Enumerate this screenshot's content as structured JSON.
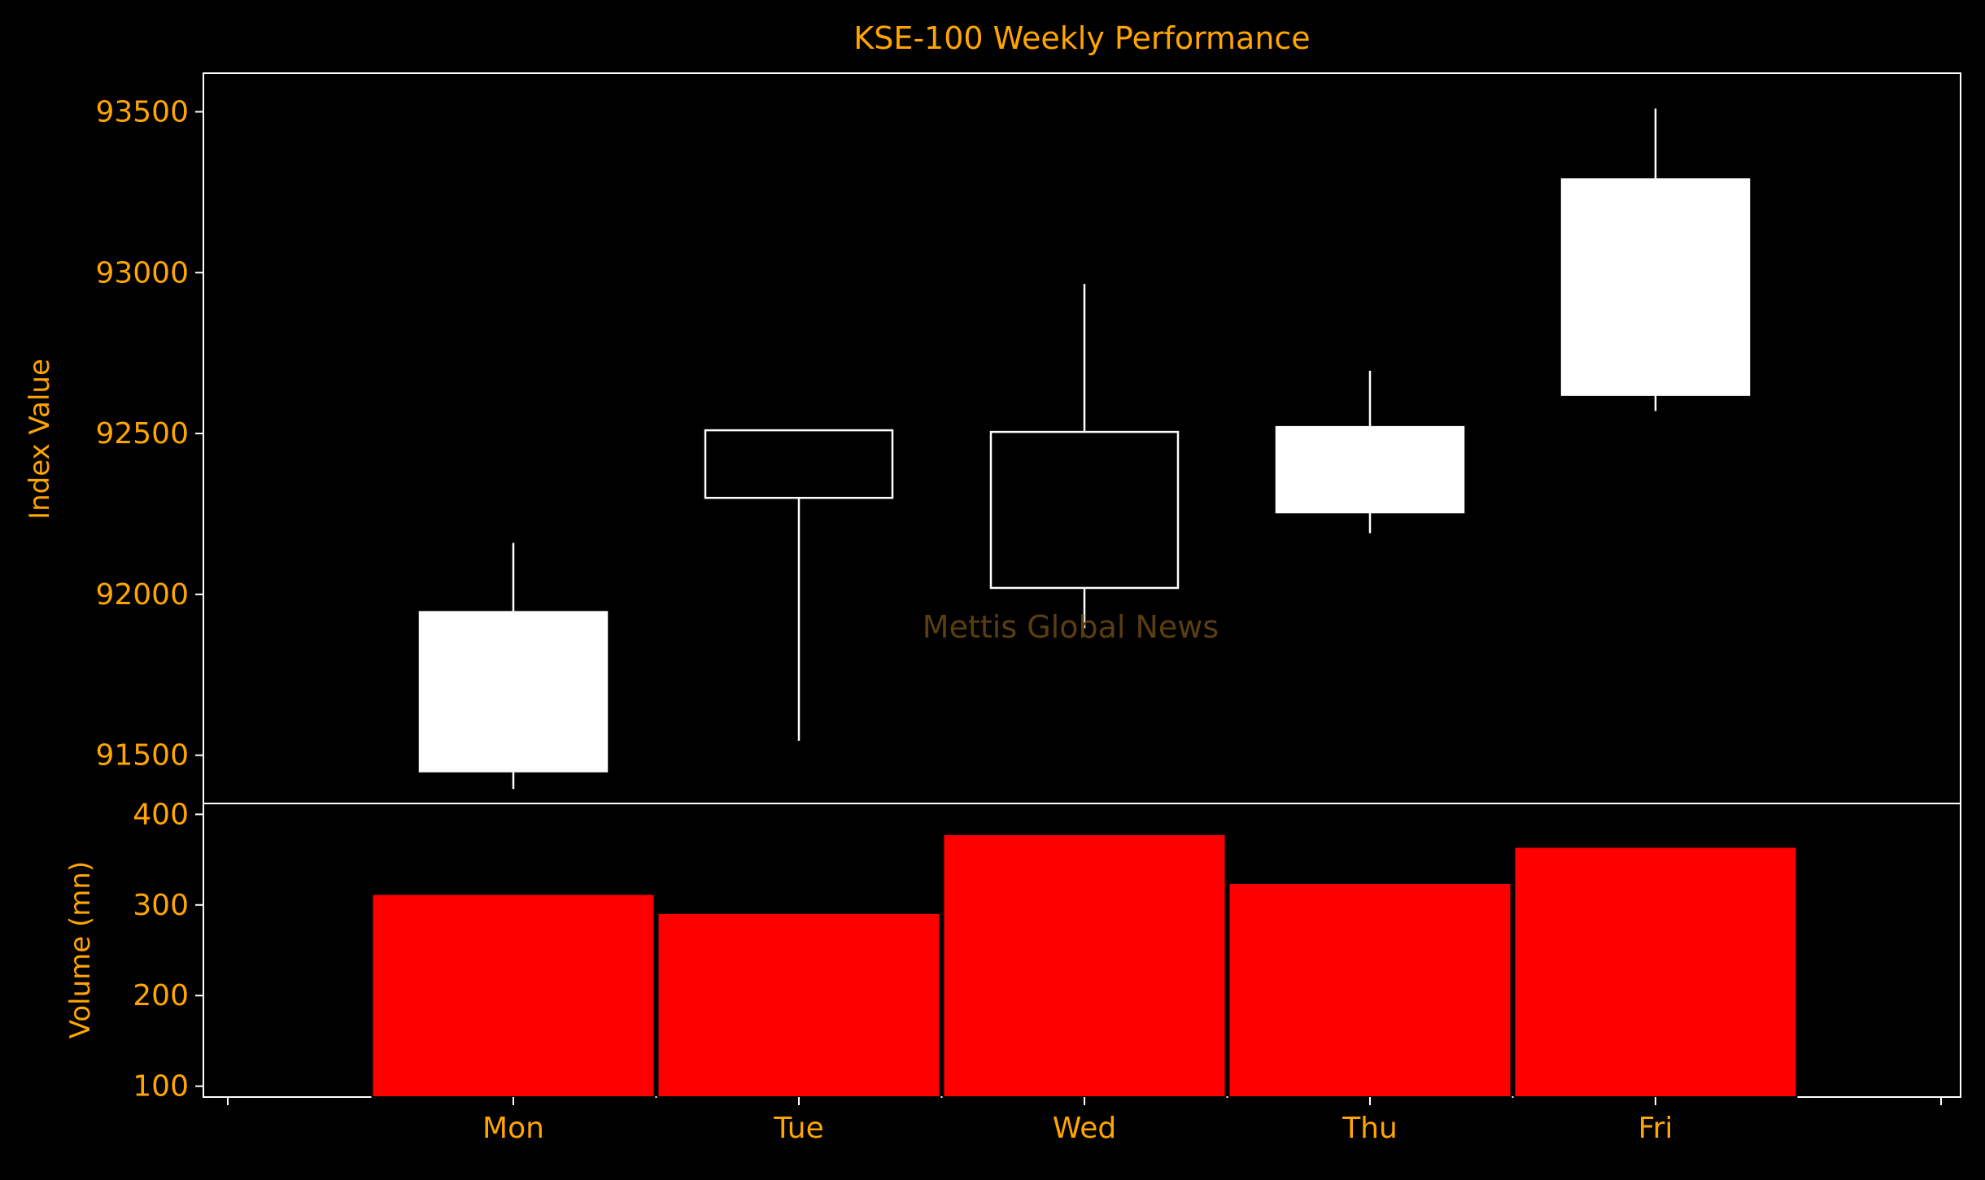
{
  "chart_data": {
    "type": "candlestick",
    "title": "KSE-100 Weekly Performance",
    "watermark": "Mettis Global News",
    "categories": [
      "Mon",
      "Tue",
      "Wed",
      "Thu",
      "Fri"
    ],
    "price": {
      "ylabel": "Index Value",
      "ylim": [
        91350,
        93620
      ],
      "yticks": [
        91500,
        92000,
        92500,
        93000,
        93500
      ],
      "ohlc": [
        {
          "day": "Mon",
          "open": 91450,
          "high": 92160,
          "low": 91395,
          "close": 91945
        },
        {
          "day": "Tue",
          "open": 92510,
          "high": 92510,
          "low": 91545,
          "close": 92300
        },
        {
          "day": "Wed",
          "open": 92505,
          "high": 92965,
          "low": 91895,
          "close": 92020
        },
        {
          "day": "Thu",
          "open": 92255,
          "high": 92695,
          "low": 92190,
          "close": 92520
        },
        {
          "day": "Fri",
          "open": 92620,
          "high": 93510,
          "low": 92570,
          "close": 93290
        }
      ]
    },
    "volume": {
      "ylabel": "Volume (mn)",
      "ylim": [
        88,
        412
      ],
      "yticks": [
        100,
        200,
        300,
        400
      ],
      "values": [
        312,
        291,
        378,
        324,
        364
      ]
    },
    "colors": {
      "background": "#000000",
      "text": "#FFA500",
      "axes": "#FFFFFF",
      "bullish": "#FFFFFF",
      "bearish": "#000000",
      "volume_bar": "#FF0000",
      "watermark": "#5a3e12"
    }
  }
}
